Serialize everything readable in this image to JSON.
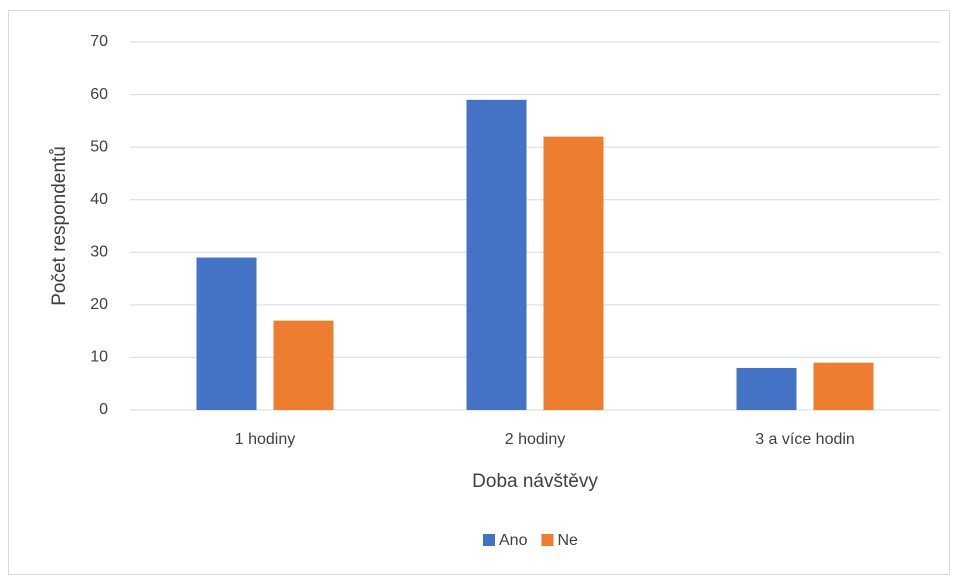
{
  "chart_data": {
    "type": "bar",
    "x_label": "Doba návštěvy",
    "y_label": "Počet respondentů",
    "categories": [
      "1 hodiny",
      "2 hodiny",
      "3 a více hodin"
    ],
    "series": [
      {
        "name": "Ano",
        "color": "#4472c4",
        "values": [
          29,
          59,
          8
        ]
      },
      {
        "name": "Ne",
        "color": "#ed7d31",
        "values": [
          17,
          52,
          9
        ]
      }
    ],
    "ylim": [
      0,
      70
    ],
    "yticks": [
      0,
      10,
      20,
      30,
      40,
      50,
      60,
      70
    ],
    "grid": true,
    "legend": "bottom"
  }
}
